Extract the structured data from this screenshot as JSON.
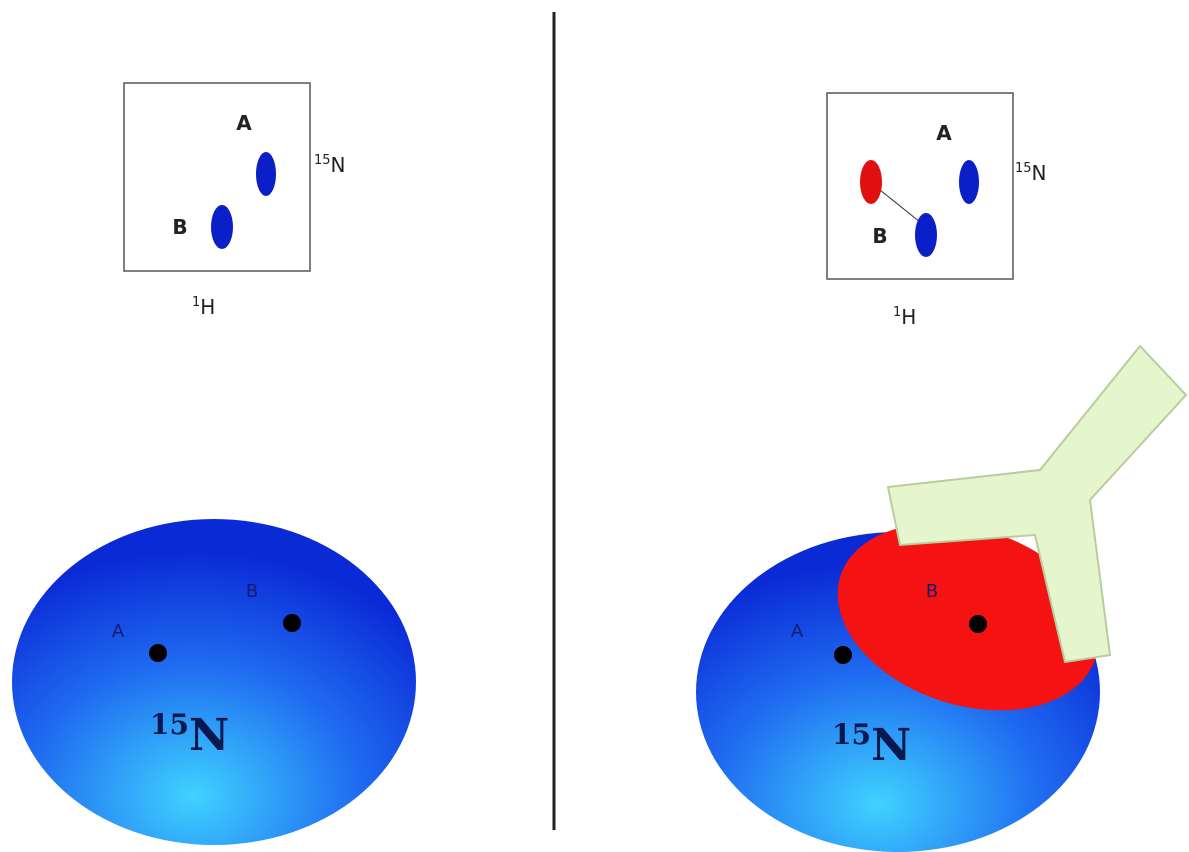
{
  "left": {
    "spectrum": {
      "peak_labels": [
        "A",
        "B"
      ],
      "y_axis": {
        "mass": "15",
        "symbol": "N"
      },
      "x_axis": {
        "mass": "1",
        "symbol": "H"
      }
    },
    "protein": {
      "site_labels": [
        "A",
        "B"
      ],
      "label": {
        "mass": "15",
        "symbol": "N"
      }
    }
  },
  "right": {
    "spectrum": {
      "peak_labels": [
        "A",
        "B"
      ],
      "y_axis": {
        "mass": "15",
        "symbol": "N"
      },
      "x_axis": {
        "mass": "1",
        "symbol": "H"
      }
    },
    "protein": {
      "site_labels": [
        "A",
        "B"
      ],
      "label": {
        "mass": "15",
        "symbol": "N"
      }
    }
  }
}
